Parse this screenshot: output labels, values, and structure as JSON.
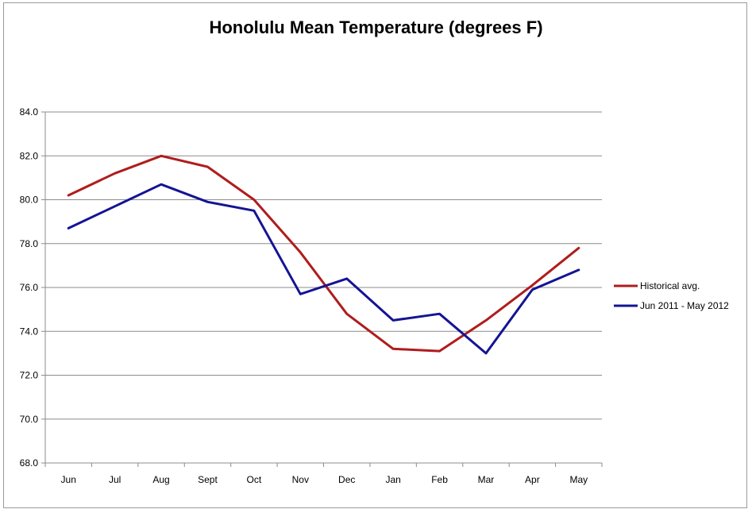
{
  "chart_data": {
    "type": "line",
    "title": "Honolulu Mean Temperature (degrees F)",
    "xlabel": "",
    "ylabel": "",
    "categories": [
      "Jun",
      "Jul",
      "Aug",
      "Sept",
      "Oct",
      "Nov",
      "Dec",
      "Jan",
      "Feb",
      "Mar",
      "Apr",
      "May"
    ],
    "ylim": [
      68.0,
      84.0
    ],
    "yticks": [
      68.0,
      70.0,
      72.0,
      74.0,
      76.0,
      78.0,
      80.0,
      82.0,
      84.0
    ],
    "ytick_labels": [
      "68.0",
      "70.0",
      "72.0",
      "74.0",
      "76.0",
      "78.0",
      "80.0",
      "82.0",
      "84.0"
    ],
    "grid": true,
    "legend_position": "right",
    "series": [
      {
        "name": "Historical avg.",
        "color": "#b01c1c",
        "values": [
          80.2,
          81.2,
          82.0,
          81.5,
          80.0,
          77.6,
          74.8,
          73.2,
          73.1,
          74.5,
          76.1,
          77.8
        ]
      },
      {
        "name": "Jun 2011 - May 2012",
        "color": "#141494",
        "values": [
          78.7,
          79.7,
          80.7,
          79.9,
          79.5,
          75.7,
          76.4,
          74.5,
          74.8,
          73.0,
          75.9,
          76.8
        ]
      }
    ]
  }
}
